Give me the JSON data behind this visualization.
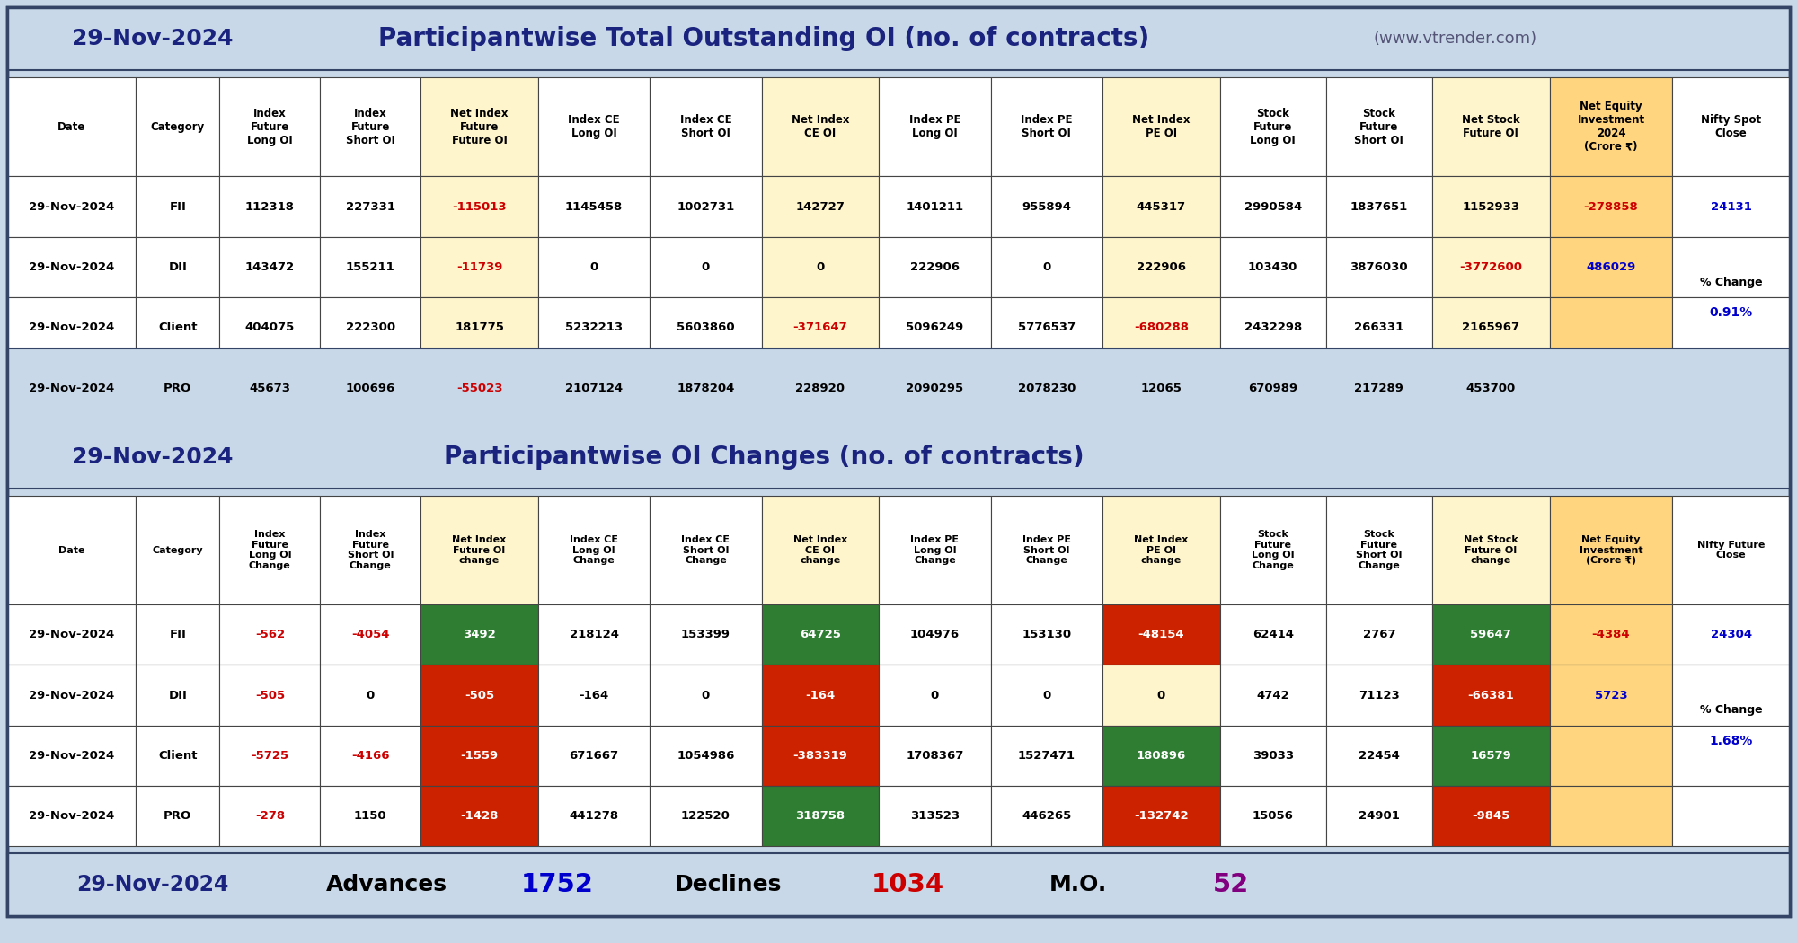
{
  "title1_date": "29-Nov-2024",
  "title1_main": "Participantwise Total Outstanding OI (no. of contracts)",
  "title1_web": "(www.vtrender.com)",
  "title2_date": "29-Nov-2024",
  "title2_main": "Participantwise OI Changes (no. of contracts)",
  "title3_date": "29-Nov-2024",
  "advances_label": "Advances",
  "advances_value": "1752",
  "declines_label": "Declines",
  "declines_value": "1034",
  "mo_label": "M.O.",
  "mo_value": "52",
  "bg_color": "#C8D8E8",
  "table1_data": [
    [
      "29-Nov-2024",
      "FII",
      "112318",
      "227331",
      "-115013",
      "1145458",
      "1002731",
      "142727",
      "1401211",
      "955894",
      "445317",
      "2990584",
      "1837651",
      "1152933",
      "-278858",
      "24131"
    ],
    [
      "29-Nov-2024",
      "DII",
      "143472",
      "155211",
      "-11739",
      "0",
      "0",
      "0",
      "222906",
      "0",
      "222906",
      "103430",
      "3876030",
      "-3772600",
      "486029",
      ""
    ],
    [
      "29-Nov-2024",
      "Client",
      "404075",
      "222300",
      "181775",
      "5232213",
      "5603860",
      "-371647",
      "5096249",
      "5776537",
      "-680288",
      "2432298",
      "266331",
      "2165967",
      "",
      ""
    ],
    [
      "29-Nov-2024",
      "PRO",
      "45673",
      "100696",
      "-55023",
      "2107124",
      "1878204",
      "228920",
      "2090295",
      "2078230",
      "12065",
      "670989",
      "217289",
      "453700",
      "",
      ""
    ]
  ],
  "table1_nifty_pct": "0.91%",
  "table2_data": [
    [
      "29-Nov-2024",
      "FII",
      "-562",
      "-4054",
      "3492",
      "218124",
      "153399",
      "64725",
      "104976",
      "153130",
      "-48154",
      "62414",
      "2767",
      "59647",
      "-4384",
      "24304"
    ],
    [
      "29-Nov-2024",
      "DII",
      "-505",
      "0",
      "-505",
      "-164",
      "0",
      "-164",
      "0",
      "0",
      "0",
      "4742",
      "71123",
      "-66381",
      "5723",
      ""
    ],
    [
      "29-Nov-2024",
      "Client",
      "-5725",
      "-4166",
      "-1559",
      "671667",
      "1054986",
      "-383319",
      "1708367",
      "1527471",
      "180896",
      "39033",
      "22454",
      "16579",
      "",
      ""
    ],
    [
      "29-Nov-2024",
      "PRO",
      "-278",
      "1150",
      "-1428",
      "441278",
      "122520",
      "318758",
      "313523",
      "446265",
      "-132742",
      "15056",
      "24901",
      "-9845",
      "",
      ""
    ]
  ],
  "table2_nifty_pct": "1.68%",
  "col_widths_rel": [
    115,
    75,
    90,
    90,
    105,
    100,
    100,
    105,
    100,
    100,
    105,
    95,
    95,
    105,
    110,
    105
  ],
  "col_bgs": [
    "#FFFFFF",
    "#FFFFFF",
    "#FFFFFF",
    "#FFFFFF",
    "#FFF5CC",
    "#FFFFFF",
    "#FFFFFF",
    "#FFF5CC",
    "#FFFFFF",
    "#FFFFFF",
    "#FFF5CC",
    "#FFFFFF",
    "#FFFFFF",
    "#FFF5CC",
    "#FFD580",
    "#FFFFFF"
  ],
  "header1_texts": [
    "Date",
    "Category",
    "Index\nFuture\nLong OI",
    "Index\nFuture\nShort OI",
    "Net Index\nFuture\nFuture OI",
    "Index CE\nLong OI",
    "Index CE\nShort OI",
    "Net Index\nCE OI",
    "Index PE\nLong OI",
    "Index PE\nShort OI",
    "Net Index\nPE OI",
    "Stock\nFuture\nLong OI",
    "Stock\nFuture\nShort OI",
    "Net Stock\nFuture OI",
    "Net Equity\nInvestment\n2024\n(Crore ₹)",
    "Nifty Spot\nClose"
  ],
  "header2_texts": [
    "Date",
    "Category",
    "Index\nFuture\nLong OI\nChange",
    "Index\nFuture\nShort OI\nChange",
    "Net Index\nFuture OI\nchange",
    "Index CE\nLong OI\nChange",
    "Index CE\nShort OI\nChange",
    "Net Index\nCE OI\nchange",
    "Index PE\nLong OI\nChange",
    "Index PE\nShort OI\nChange",
    "Net Index\nPE OI\nchange",
    "Stock\nFuture\nLong OI\nChange",
    "Stock\nFuture\nShort OI\nChange",
    "Net Stock\nFuture OI\nchange",
    "Net Equity\nInvestment\n(Crore ₹)",
    "Nifty Future\nClose"
  ],
  "t2_cell_bgs": {
    "0_4": "#2E7D32",
    "1_4": "#CC2200",
    "2_4": "#CC2200",
    "3_4": "#CC2200",
    "0_7": "#2E7D32",
    "1_7": "#CC2200",
    "2_7": "#CC2200",
    "3_7": "#2E7D32",
    "0_10": "#CC2200",
    "1_10": "#FFF5CC",
    "2_10": "#2E7D32",
    "3_10": "#CC2200",
    "0_13": "#2E7D32",
    "1_13": "#CC2200",
    "2_13": "#2E7D32",
    "3_13": "#CC2200"
  }
}
